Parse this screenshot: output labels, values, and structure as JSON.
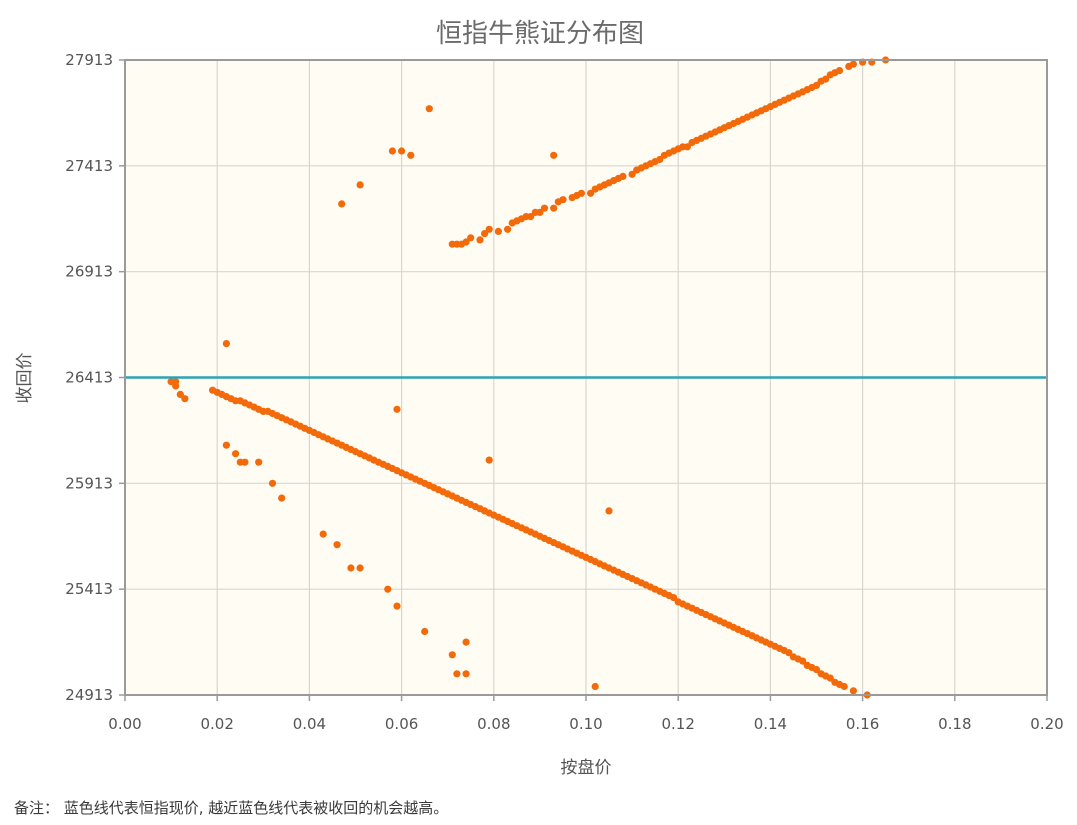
{
  "chart_data": {
    "type": "scatter",
    "title": "恒指牛熊证分布图",
    "xlabel": "按盘价",
    "ylabel": "收回价",
    "xlim": [
      0,
      0.2
    ],
    "ylim": [
      24913,
      27913
    ],
    "x_ticks": [
      "0.00",
      "0.02",
      "0.04",
      "0.06",
      "0.08",
      "0.10",
      "0.12",
      "0.14",
      "0.16",
      "0.18",
      "0.20"
    ],
    "y_ticks": [
      "27913",
      "27413",
      "26913",
      "26413",
      "25913",
      "25413",
      "24913"
    ],
    "grid": true,
    "reference_line": {
      "y": 26413,
      "color": "#2aa3b8"
    },
    "colors": {
      "points": "#f26a0a",
      "plot_background": "#fffcf3",
      "grid": "#d9d6cf",
      "frame": "#9a9a9a"
    },
    "series": [
      {
        "points": [
          [
            0.071,
            27043
          ],
          [
            0.072,
            27043
          ],
          [
            0.073,
            27043
          ],
          [
            0.074,
            27053
          ],
          [
            0.075,
            27073
          ],
          [
            0.077,
            27063
          ],
          [
            0.078,
            27093
          ],
          [
            0.079,
            27113
          ],
          [
            0.081,
            27103
          ],
          [
            0.083,
            27113
          ],
          [
            0.084,
            27143
          ],
          [
            0.085,
            27153
          ],
          [
            0.086,
            27163
          ],
          [
            0.087,
            27173
          ],
          [
            0.088,
            27173
          ],
          [
            0.089,
            27193
          ],
          [
            0.09,
            27193
          ],
          [
            0.091,
            27213
          ],
          [
            0.093,
            27213
          ],
          [
            0.094,
            27243
          ],
          [
            0.095,
            27253
          ],
          [
            0.097,
            27263
          ],
          [
            0.098,
            27273
          ],
          [
            0.099,
            27283
          ],
          [
            0.101,
            27283
          ],
          [
            0.102,
            27303
          ],
          [
            0.103,
            27313
          ],
          [
            0.104,
            27323
          ],
          [
            0.105,
            27333
          ],
          [
            0.106,
            27343
          ],
          [
            0.107,
            27353
          ],
          [
            0.108,
            27363
          ],
          [
            0.11,
            27373
          ],
          [
            0.111,
            27393
          ],
          [
            0.112,
            27403
          ],
          [
            0.113,
            27413
          ],
          [
            0.114,
            27423
          ],
          [
            0.115,
            27433
          ],
          [
            0.116,
            27443
          ],
          [
            0.117,
            27463
          ],
          [
            0.118,
            27473
          ],
          [
            0.119,
            27483
          ],
          [
            0.12,
            27493
          ],
          [
            0.121,
            27503
          ],
          [
            0.122,
            27503
          ],
          [
            0.123,
            27523
          ],
          [
            0.124,
            27533
          ],
          [
            0.125,
            27543
          ],
          [
            0.126,
            27553
          ],
          [
            0.127,
            27563
          ],
          [
            0.128,
            27573
          ],
          [
            0.129,
            27583
          ],
          [
            0.13,
            27593
          ],
          [
            0.131,
            27603
          ],
          [
            0.132,
            27613
          ],
          [
            0.133,
            27623
          ],
          [
            0.134,
            27633
          ],
          [
            0.135,
            27643
          ],
          [
            0.136,
            27653
          ],
          [
            0.137,
            27663
          ],
          [
            0.138,
            27673
          ],
          [
            0.139,
            27683
          ],
          [
            0.14,
            27693
          ],
          [
            0.141,
            27703
          ],
          [
            0.142,
            27713
          ],
          [
            0.143,
            27723
          ],
          [
            0.144,
            27733
          ],
          [
            0.145,
            27743
          ],
          [
            0.146,
            27753
          ],
          [
            0.147,
            27763
          ],
          [
            0.148,
            27773
          ],
          [
            0.149,
            27783
          ],
          [
            0.15,
            27793
          ],
          [
            0.151,
            27813
          ],
          [
            0.152,
            27823
          ],
          [
            0.153,
            27843
          ],
          [
            0.154,
            27853
          ],
          [
            0.155,
            27863
          ],
          [
            0.157,
            27883
          ],
          [
            0.158,
            27893
          ],
          [
            0.16,
            27903
          ],
          [
            0.162,
            27903
          ],
          [
            0.165,
            27913
          ],
          [
            0.01,
            26393
          ],
          [
            0.011,
            26393
          ],
          [
            0.011,
            26373
          ],
          [
            0.012,
            26333
          ],
          [
            0.013,
            26313
          ],
          [
            0.019,
            26353
          ],
          [
            0.02,
            26343
          ],
          [
            0.021,
            26333
          ],
          [
            0.022,
            26323
          ],
          [
            0.023,
            26313
          ],
          [
            0.024,
            26303
          ],
          [
            0.025,
            26303
          ],
          [
            0.026,
            26293
          ],
          [
            0.027,
            26283
          ],
          [
            0.028,
            26273
          ],
          [
            0.029,
            26263
          ],
          [
            0.03,
            26253
          ],
          [
            0.031,
            26253
          ],
          [
            0.032,
            26243
          ],
          [
            0.033,
            26233
          ],
          [
            0.034,
            26223
          ],
          [
            0.035,
            26213
          ],
          [
            0.036,
            26203
          ],
          [
            0.037,
            26193
          ],
          [
            0.038,
            26183
          ],
          [
            0.039,
            26173
          ],
          [
            0.04,
            26163
          ],
          [
            0.041,
            26153
          ],
          [
            0.042,
            26143
          ],
          [
            0.043,
            26133
          ],
          [
            0.044,
            26123
          ],
          [
            0.045,
            26113
          ],
          [
            0.046,
            26103
          ],
          [
            0.047,
            26093
          ],
          [
            0.048,
            26083
          ],
          [
            0.049,
            26073
          ],
          [
            0.05,
            26063
          ],
          [
            0.051,
            26053
          ],
          [
            0.052,
            26043
          ],
          [
            0.053,
            26033
          ],
          [
            0.054,
            26023
          ],
          [
            0.055,
            26013
          ],
          [
            0.056,
            26003
          ],
          [
            0.057,
            25993
          ],
          [
            0.058,
            25983
          ],
          [
            0.059,
            25973
          ],
          [
            0.06,
            25963
          ],
          [
            0.061,
            25953
          ],
          [
            0.062,
            25943
          ],
          [
            0.063,
            25933
          ],
          [
            0.064,
            25923
          ],
          [
            0.065,
            25913
          ],
          [
            0.066,
            25903
          ],
          [
            0.067,
            25893
          ],
          [
            0.068,
            25883
          ],
          [
            0.069,
            25873
          ],
          [
            0.07,
            25863
          ],
          [
            0.071,
            25853
          ],
          [
            0.072,
            25843
          ],
          [
            0.073,
            25833
          ],
          [
            0.074,
            25823
          ],
          [
            0.075,
            25813
          ],
          [
            0.076,
            25803
          ],
          [
            0.077,
            25793
          ],
          [
            0.078,
            25783
          ],
          [
            0.079,
            25773
          ],
          [
            0.08,
            25763
          ],
          [
            0.081,
            25753
          ],
          [
            0.082,
            25743
          ],
          [
            0.083,
            25733
          ],
          [
            0.084,
            25723
          ],
          [
            0.085,
            25713
          ],
          [
            0.086,
            25703
          ],
          [
            0.087,
            25693
          ],
          [
            0.088,
            25683
          ],
          [
            0.089,
            25673
          ],
          [
            0.09,
            25663
          ],
          [
            0.091,
            25653
          ],
          [
            0.092,
            25643
          ],
          [
            0.093,
            25633
          ],
          [
            0.094,
            25623
          ],
          [
            0.095,
            25613
          ],
          [
            0.096,
            25603
          ],
          [
            0.097,
            25593
          ],
          [
            0.098,
            25583
          ],
          [
            0.099,
            25573
          ],
          [
            0.1,
            25563
          ],
          [
            0.101,
            25553
          ],
          [
            0.102,
            25543
          ],
          [
            0.103,
            25533
          ],
          [
            0.104,
            25523
          ],
          [
            0.105,
            25513
          ],
          [
            0.106,
            25503
          ],
          [
            0.107,
            25493
          ],
          [
            0.108,
            25483
          ],
          [
            0.109,
            25473
          ],
          [
            0.11,
            25463
          ],
          [
            0.111,
            25453
          ],
          [
            0.112,
            25443
          ],
          [
            0.113,
            25433
          ],
          [
            0.114,
            25423
          ],
          [
            0.115,
            25413
          ],
          [
            0.116,
            25403
          ],
          [
            0.117,
            25393
          ],
          [
            0.118,
            25383
          ],
          [
            0.119,
            25373
          ],
          [
            0.12,
            25353
          ],
          [
            0.121,
            25343
          ],
          [
            0.122,
            25333
          ],
          [
            0.123,
            25323
          ],
          [
            0.124,
            25313
          ],
          [
            0.125,
            25303
          ],
          [
            0.126,
            25293
          ],
          [
            0.127,
            25283
          ],
          [
            0.128,
            25273
          ],
          [
            0.129,
            25263
          ],
          [
            0.13,
            25253
          ],
          [
            0.131,
            25243
          ],
          [
            0.132,
            25233
          ],
          [
            0.133,
            25223
          ],
          [
            0.134,
            25213
          ],
          [
            0.135,
            25203
          ],
          [
            0.136,
            25193
          ],
          [
            0.137,
            25183
          ],
          [
            0.138,
            25173
          ],
          [
            0.139,
            25163
          ],
          [
            0.14,
            25153
          ],
          [
            0.141,
            25143
          ],
          [
            0.142,
            25133
          ],
          [
            0.143,
            25123
          ],
          [
            0.144,
            25113
          ],
          [
            0.145,
            25093
          ],
          [
            0.146,
            25083
          ],
          [
            0.147,
            25073
          ],
          [
            0.148,
            25053
          ],
          [
            0.149,
            25043
          ],
          [
            0.15,
            25033
          ],
          [
            0.151,
            25013
          ],
          [
            0.152,
            25003
          ],
          [
            0.153,
            24993
          ],
          [
            0.154,
            24973
          ],
          [
            0.155,
            24963
          ],
          [
            0.156,
            24953
          ],
          [
            0.158,
            24933
          ],
          [
            0.161,
            24913
          ],
          [
            0.047,
            27233
          ],
          [
            0.051,
            27323
          ],
          [
            0.058,
            27483
          ],
          [
            0.06,
            27483
          ],
          [
            0.062,
            27463
          ],
          [
            0.066,
            27683
          ],
          [
            0.093,
            27463
          ],
          [
            0.022,
            26573
          ],
          [
            0.022,
            26093
          ],
          [
            0.024,
            26053
          ],
          [
            0.025,
            26013
          ],
          [
            0.026,
            26013
          ],
          [
            0.029,
            26013
          ],
          [
            0.032,
            25913
          ],
          [
            0.034,
            25843
          ],
          [
            0.043,
            25673
          ],
          [
            0.046,
            25623
          ],
          [
            0.049,
            25513
          ],
          [
            0.051,
            25513
          ],
          [
            0.057,
            25413
          ],
          [
            0.059,
            25333
          ],
          [
            0.065,
            25213
          ],
          [
            0.071,
            25103
          ],
          [
            0.072,
            25013
          ],
          [
            0.074,
            25013
          ],
          [
            0.074,
            25163
          ],
          [
            0.079,
            26023
          ],
          [
            0.059,
            26263
          ],
          [
            0.105,
            25783
          ],
          [
            0.102,
            24953
          ]
        ]
      }
    ]
  },
  "footnote": "备注：  蓝色线代表恒指现价, 越近蓝色线代表被收回的机会越高。"
}
